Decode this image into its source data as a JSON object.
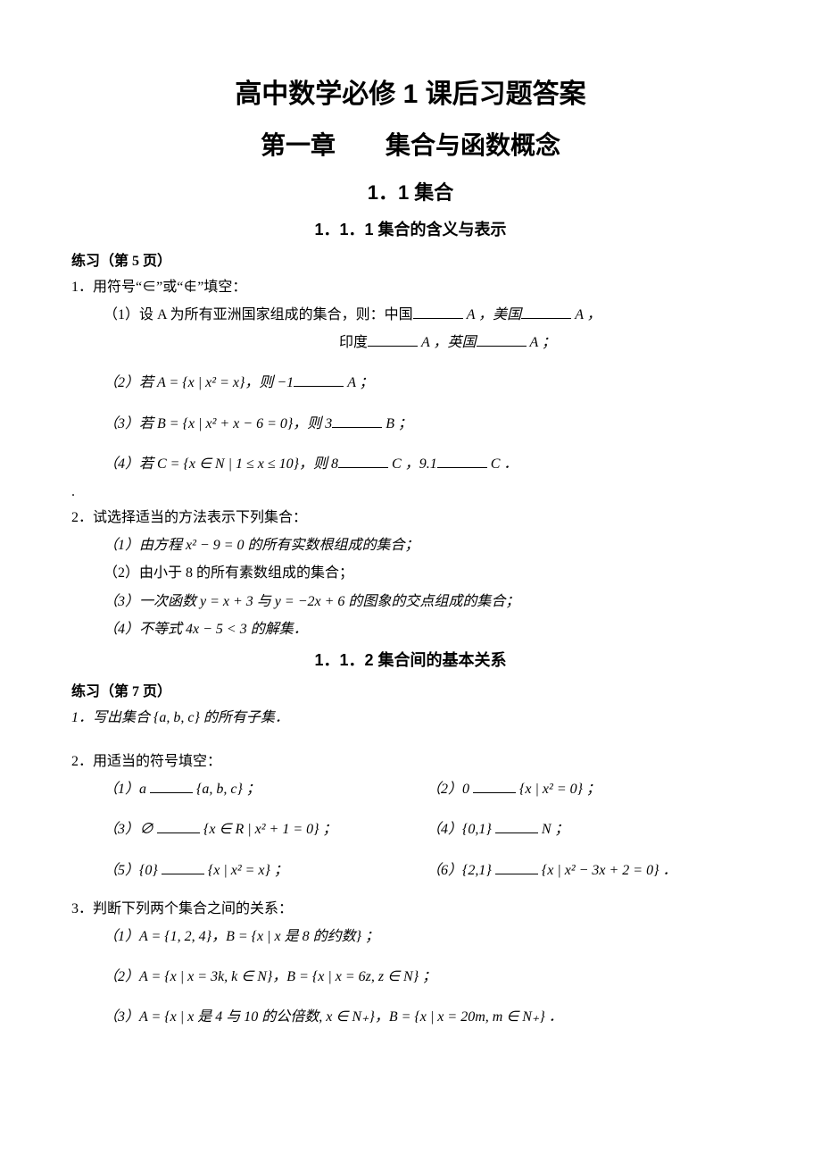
{
  "titles": {
    "t1": "高中数学必修 1 课后习题答案",
    "t2": "第一章　　集合与函数概念",
    "t3": "1．1 集合",
    "t4a": "1．1．1 集合的含义与表示",
    "t4b": "1．1．2 集合间的基本关系"
  },
  "practice5": "练习（第 5 页）",
  "practice7": "练习（第 7 页）",
  "p5": {
    "q1": "1．用符号“∈”或“∉”填空：",
    "q1_1a": "（1）设 A 为所有亚洲国家组成的集合，则：中国",
    "q1_1b": "A ，美国",
    "q1_1c": "A ，",
    "q1_1d": "印度",
    "q1_1e": "A ，英国",
    "q1_1f": "A ；",
    "q1_2a": "（2）若 A = {x | x² = x}，则 −1",
    "q1_2b": "A ；",
    "q1_3a": "（3）若 B = {x | x² + x − 6 = 0}，则 3",
    "q1_3b": "B ；",
    "q1_4a": "（4）若 C = {x ∈ N | 1 ≤ x ≤ 10}，则 8",
    "q1_4b": "C ，9.1",
    "q1_4c": "C ．",
    "q2": "2．试选择适当的方法表示下列集合：",
    "q2_1": "（1）由方程 x² − 9 = 0 的所有实数根组成的集合；",
    "q2_2": "（2）由小于 8 的所有素数组成的集合；",
    "q2_3": "（3）一次函数 y = x + 3 与 y = −2x + 6 的图象的交点组成的集合；",
    "q2_4": "（4）不等式 4x − 5 < 3 的解集．"
  },
  "p7": {
    "q1": "1．写出集合 {a, b, c} 的所有子集．",
    "q2": "2．用适当的符号填空：",
    "q2_1a": "（1）a",
    "q2_1b": "{a, b, c} ；",
    "q2_2a": "（2）0",
    "q2_2b": "{x | x² = 0} ；",
    "q2_3a": "（3）∅",
    "q2_3b": "{x ∈ R | x² + 1 = 0} ；",
    "q2_4a": "（4）{0,1}",
    "q2_4b": "N ；",
    "q2_5a": "（5）{0}",
    "q2_5b": "{x | x² = x} ；",
    "q2_6a": "（6）{2,1}",
    "q2_6b": "{x | x² − 3x + 2 = 0} ．",
    "q3": "3．判断下列两个集合之间的关系：",
    "q3_1": "（1）A = {1, 2, 4}，B = {x | x 是 8 的约数} ；",
    "q3_2": "（2）A = {x | x = 3k, k ∈ N}，B = {x | x = 6z, z ∈ N} ；",
    "q3_3": "（3）A = {x | x 是 4 与 10 的公倍数, x ∈ N₊}，B = {x | x = 20m, m ∈ N₊} ．"
  },
  "dot": "."
}
